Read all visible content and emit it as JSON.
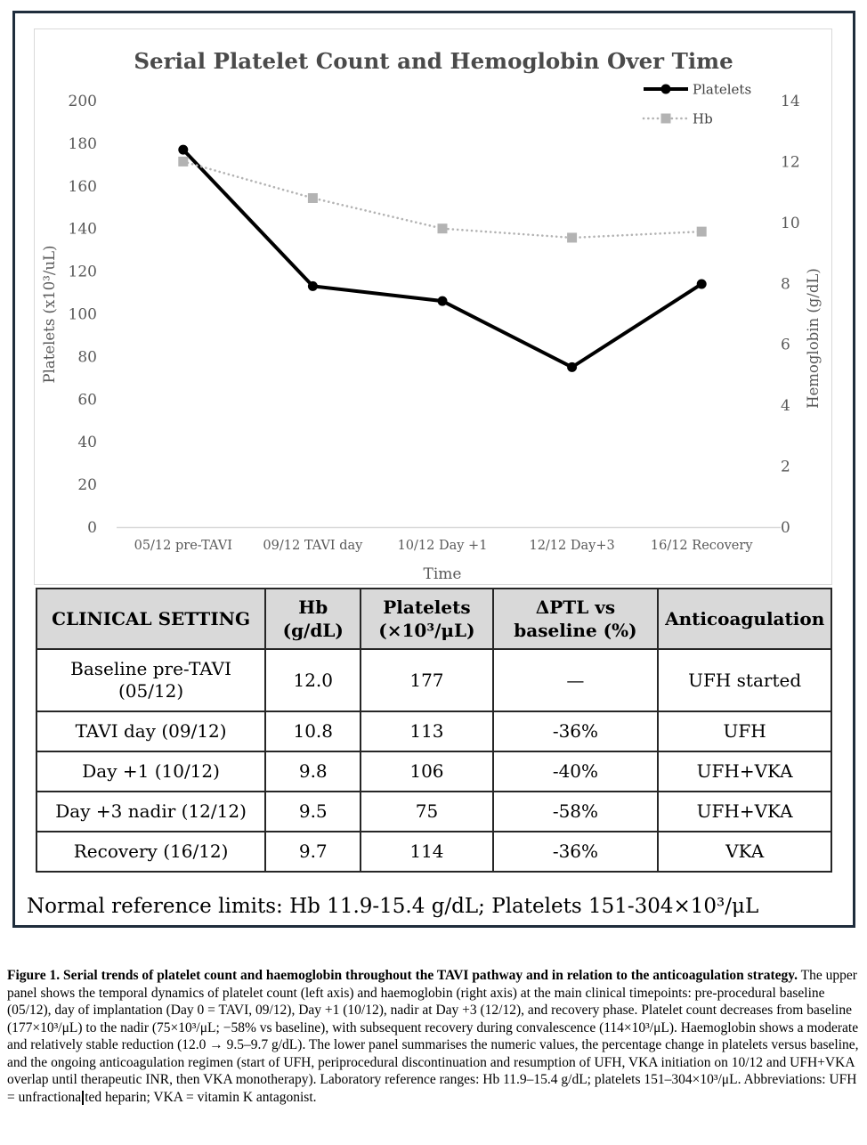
{
  "chart_data": {
    "type": "line",
    "title": "Serial Platelet Count and Hemoglobin Over Time",
    "categories": [
      "05/12 pre-TAVI",
      "09/12 TAVI day",
      "10/12 Day +1",
      "12/12 Day+3",
      "16/12 Recovery"
    ],
    "series": [
      {
        "name": "Platelets",
        "axis": "left",
        "values": [
          177,
          113,
          106,
          75,
          114
        ],
        "color": "#000000",
        "marker": "circle",
        "style": "solid"
      },
      {
        "name": "Hb",
        "axis": "right",
        "values": [
          12.0,
          10.8,
          9.8,
          9.5,
          9.7
        ],
        "color": "#b3b3b3",
        "marker": "square",
        "style": "dotted"
      }
    ],
    "xlabel": "Time",
    "ylabel_left": "Platelets (x10³/uL)",
    "ylabel_right": "Hemoglobin (g/dL)",
    "ylim_left": [
      0,
      200
    ],
    "ylim_right": [
      0,
      14
    ],
    "yticks_left": [
      0,
      20,
      40,
      60,
      80,
      100,
      120,
      140,
      160,
      180,
      200
    ],
    "yticks_right": [
      0,
      2,
      4,
      6,
      8,
      10,
      12,
      14
    ],
    "grid": false,
    "legend_position": "top-right"
  },
  "table": {
    "headers": [
      "CLINICAL SETTING",
      "Hb\n(g/dL)",
      "Platelets\n(×10³/μL)",
      "ΔPTL vs\nbaseline (%)",
      "Anticoagulation"
    ],
    "col_widths_pct": [
      28.8,
      12.0,
      16.6,
      20.8,
      21.8
    ],
    "rows": [
      [
        "Baseline pre-TAVI (05/12)",
        "12.0",
        "177",
        "—",
        "UFH started"
      ],
      [
        "TAVI day (09/12)",
        "10.8",
        "113",
        "-36%",
        "UFH"
      ],
      [
        "Day +1 (10/12)",
        "9.8",
        "106",
        "-40%",
        "UFH+VKA"
      ],
      [
        "Day +3 nadir (12/12)",
        "9.5",
        "75",
        "-58%",
        "UFH+VKA"
      ],
      [
        "Recovery (16/12)",
        "9.7",
        "114",
        "-36%",
        "VKA"
      ]
    ]
  },
  "reference_note": "Normal reference limits: Hb 11.9-15.4 g/dL; Platelets 151-304×10³/μL",
  "caption": {
    "bold": "Figure 1. Serial trends of platelet count and haemoglobin throughout the TAVI pathway and in relation to the anticoagulation strategy.",
    "body_before_caret": " The upper panel shows the temporal dynamics of platelet count (left axis) and haemoglobin (right axis) at the main clinical timepoints: pre-procedural baseline (05/12), day of implantation (Day 0 = TAVI, 09/12), Day +1 (10/12), nadir at Day +3 (12/12), and recovery phase. Platelet count decreases from baseline (177×10³/μL) to the nadir (75×10³/μL; −58% vs baseline), with subsequent recovery during convalescence (114×10³/μL). Haemoglobin shows a moderate and relatively stable reduction (12.0 → 9.5–9.7 g/dL). The lower panel summarises the numeric values, the percentage change in platelets versus baseline, and the ongoing anticoagulation regimen (start of UFH, periprocedural discontinuation and resumption of UFH, VKA initiation on 10/12 and UFH+VKA overlap until therapeutic INR, then VKA monotherapy). Laboratory reference ranges: Hb 11.9–15.4 g/dL; platelets 151–304×10³/μL. Abbreviations: UFH = unfractiona",
    "body_after_caret": "ted heparin; VKA = vitamin K antagonist."
  },
  "colors": {
    "figure_border": "#1f2d3c",
    "chart_border": "#d9d9d9",
    "chart_title": "#4a4a4a",
    "axis_text": "#595959",
    "legend_text": "#404040",
    "table_header_bg": "#d9d9d9",
    "table_border": "#262626",
    "platelets_line": "#000000",
    "hb_line": "#b3b3b3"
  }
}
